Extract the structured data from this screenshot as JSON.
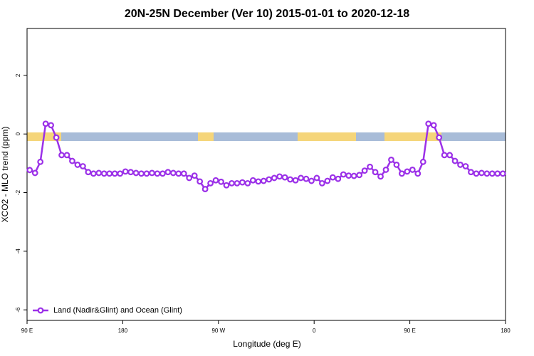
{
  "chart_data": {
    "type": "line",
    "title": "20N-25N December (Ver 10)   2015-01-01 to 2020-12-18",
    "x_label": "Longitude (deg E)",
    "y_label": "XCO2 - MLO trend (ppm)",
    "xlim": [
      90,
      540
    ],
    "xticks": [
      {
        "value": 90,
        "label": "90 E"
      },
      {
        "value": 180,
        "label": "180"
      },
      {
        "value": 270,
        "label": "90 W"
      },
      {
        "value": 360,
        "label": "0"
      },
      {
        "value": 450,
        "label": "90 E"
      },
      {
        "value": 540,
        "label": "180"
      }
    ],
    "ylim": [
      -6.36,
      3.6
    ],
    "yticks": [
      -6,
      -4,
      -2,
      0,
      2
    ],
    "legend": "bottom-left",
    "x": [
      92.5,
      97.5,
      102.5,
      107.5,
      112.5,
      117.5,
      122.5,
      127.5,
      132.5,
      137.5,
      142.5,
      147.5,
      152.5,
      157.5,
      162.5,
      167.5,
      172.5,
      177.5,
      182.5,
      187.5,
      192.5,
      197.5,
      202.5,
      207.5,
      212.5,
      217.5,
      222.5,
      227.5,
      232.5,
      237.5,
      242.5,
      247.5,
      252.5,
      257.5,
      262.5,
      267.5,
      272.5,
      277.5,
      282.5,
      287.5,
      292.5,
      297.5,
      302.5,
      307.5,
      312.5,
      317.5,
      322.5,
      327.5,
      332.5,
      337.5,
      342.5,
      347.5,
      352.5,
      357.5,
      362.5,
      367.5,
      372.5,
      377.5,
      382.5,
      387.5,
      392.5,
      397.5,
      402.5,
      407.5,
      412.5,
      417.5,
      422.5,
      427.5,
      432.5,
      437.5,
      442.5,
      447.5,
      452.5,
      457.5,
      462.5,
      467.5,
      472.5,
      477.5,
      482.5,
      487.5,
      492.5,
      497.5,
      502.5,
      507.5,
      512.5,
      517.5,
      522.5,
      527.5,
      532.5,
      537.5
    ],
    "series": [
      {
        "name": "Land (Nadir&Glint) and Ocean (Glint)",
        "color": "#9b30e8",
        "values": [
          -1.23,
          -1.33,
          -0.95,
          0.35,
          0.3,
          -0.12,
          -0.72,
          -0.72,
          -0.92,
          -1.05,
          -1.1,
          -1.3,
          -1.35,
          -1.33,
          -1.35,
          -1.35,
          -1.35,
          -1.35,
          -1.28,
          -1.3,
          -1.33,
          -1.35,
          -1.35,
          -1.33,
          -1.35,
          -1.35,
          -1.3,
          -1.33,
          -1.35,
          -1.35,
          -1.5,
          -1.42,
          -1.62,
          -1.88,
          -1.68,
          -1.58,
          -1.63,
          -1.75,
          -1.68,
          -1.68,
          -1.65,
          -1.68,
          -1.58,
          -1.62,
          -1.6,
          -1.55,
          -1.5,
          -1.45,
          -1.48,
          -1.55,
          -1.58,
          -1.5,
          -1.53,
          -1.6,
          -1.5,
          -1.68,
          -1.6,
          -1.48,
          -1.53,
          -1.38,
          -1.42,
          -1.43,
          -1.4,
          -1.25,
          -1.12,
          -1.3,
          -1.45,
          -1.22,
          -0.88,
          -1.05,
          -1.35,
          -1.28,
          -1.22,
          -1.35,
          -0.95,
          0.35,
          0.3,
          -0.12,
          -0.72,
          -0.72,
          -0.92,
          -1.05,
          -1.1,
          -1.3,
          -1.35,
          -1.33,
          -1.35,
          -1.35,
          -1.35,
          -1.35
        ]
      }
    ]
  }
}
